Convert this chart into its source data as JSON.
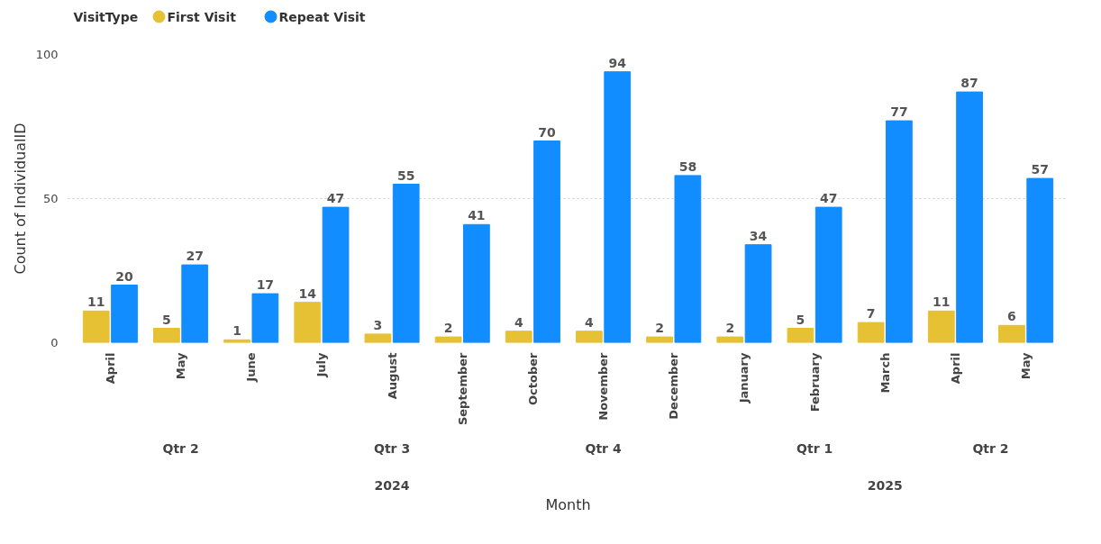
{
  "chart_data": {
    "type": "bar",
    "xlabel": "Month",
    "ylabel": "Count of IndividualID",
    "legend_title": "VisitType",
    "legend": "top left",
    "categories": [
      "April",
      "May",
      "June",
      "July",
      "August",
      "September",
      "October",
      "November",
      "December",
      "January",
      "February",
      "March",
      "April",
      "May"
    ],
    "series": [
      {
        "name": "First Visit",
        "color": "#e6c133",
        "values": [
          11,
          5,
          1,
          14,
          3,
          2,
          4,
          4,
          2,
          2,
          5,
          7,
          11,
          6
        ]
      },
      {
        "name": "Repeat Visit",
        "color": "#118dff",
        "values": [
          20,
          27,
          17,
          47,
          55,
          41,
          70,
          94,
          58,
          34,
          47,
          77,
          87,
          57
        ]
      }
    ],
    "ylim": [
      0,
      100
    ],
    "yticks": [
      0,
      50,
      100
    ],
    "grid": "y",
    "data_labels": true,
    "annotations": [
      "Qtr 2",
      "Qtr 3",
      "Qtr 4",
      "Qtr 1",
      "Qtr 2",
      "2024",
      "2025"
    ]
  }
}
